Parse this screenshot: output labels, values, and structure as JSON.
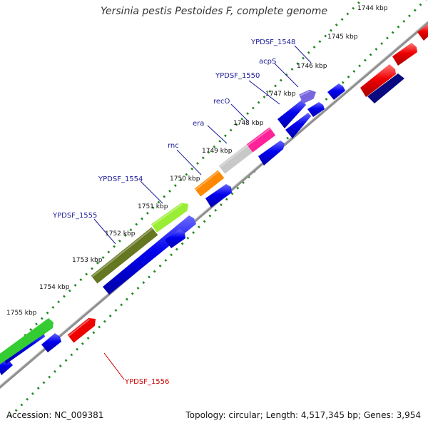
{
  "title": "Yersinia pestis Pestoides F, complete genome",
  "footer": {
    "accession": "Accession: NC_009381",
    "summary": "Topology: circular; Length: 4,517,345 bp; Genes: 3,954"
  },
  "colors": {
    "backbone": "#9a9a9a",
    "tick": "#228822",
    "gene_label": "#1a1a99",
    "highlight_label": "#cc0000",
    "default_gene": "#0000ee"
  },
  "ticks": [
    {
      "label": "1744 kbp"
    },
    {
      "label": "1745 kbp"
    },
    {
      "label": "1746 kbp"
    },
    {
      "label": "1747 kbp"
    },
    {
      "label": "1748 kbp"
    },
    {
      "label": "1749 kbp"
    },
    {
      "label": "1750 kbp"
    },
    {
      "label": "1751 kbp"
    },
    {
      "label": "1752 kbp"
    },
    {
      "label": "1753 kbp"
    },
    {
      "label": "1754 kbp"
    },
    {
      "label": "1755 kbp"
    }
  ],
  "gene_labels": [
    {
      "text": "YPDSF_1548"
    },
    {
      "text": "acpS"
    },
    {
      "text": "YPDSF_1550"
    },
    {
      "text": "recO"
    },
    {
      "text": "era"
    },
    {
      "text": "rnc"
    },
    {
      "text": "YPDSF_1554"
    },
    {
      "text": "YPDSF_1555"
    },
    {
      "text": "YPDSF_1556"
    }
  ],
  "features": [
    {
      "name": "YPDSF_1548",
      "color": "#7766dd"
    },
    {
      "name": "YPDSF_1550",
      "color": "#ff2299"
    },
    {
      "name": "recO",
      "color": "#c8c8c8"
    },
    {
      "name": "rnc",
      "color": "#ff8800"
    },
    {
      "name": "YPDSF_1554",
      "color": "#99ee33"
    },
    {
      "name": "YPDSF_1555",
      "color": "#667722"
    },
    {
      "name": "YPDSF_1556",
      "color": "#ee0000"
    }
  ]
}
